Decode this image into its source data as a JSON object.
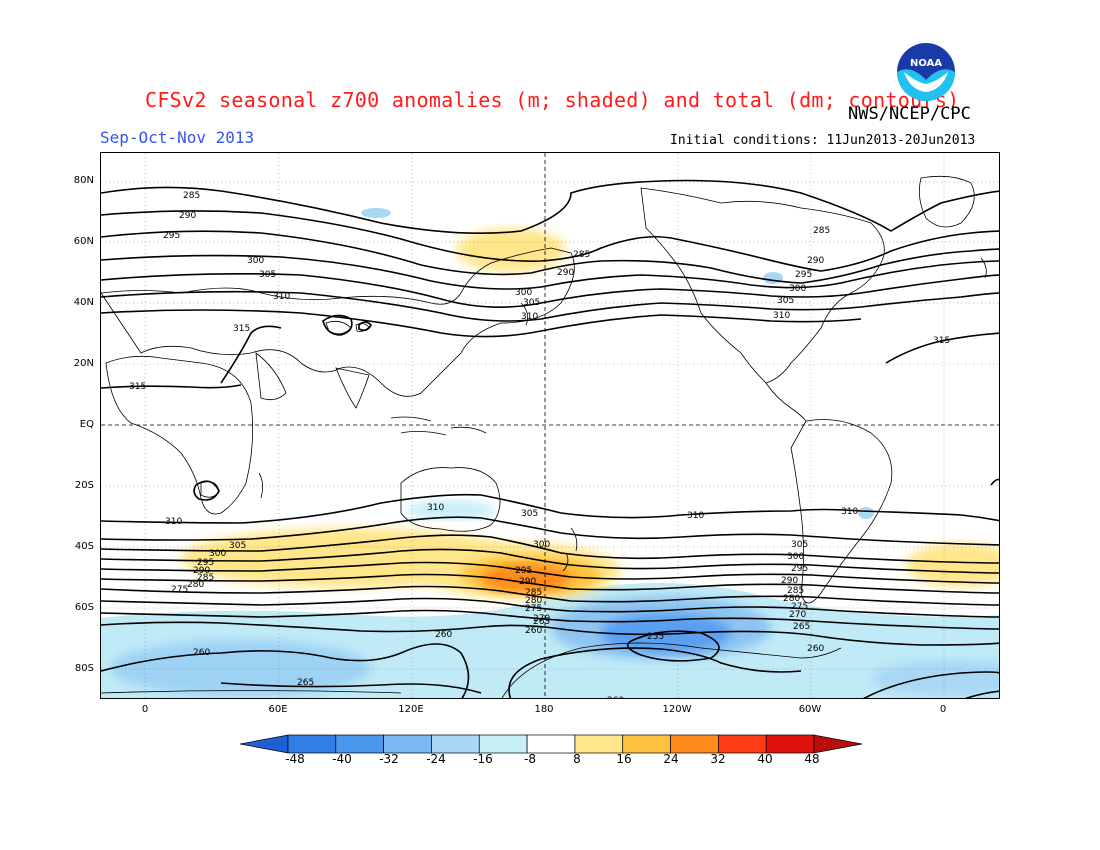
{
  "title": "CFSv2 seasonal z700 anomalies (m; shaded) and total (dm; contours)",
  "season": "Sep-Oct-Nov 2013",
  "agency": "NWS/NCEP/CPC",
  "initial_conditions": "Initial conditions: 11Jun2013-20Jun2013",
  "logo": {
    "text": "NOAA",
    "icon": "noaa-logo"
  },
  "lat_labels": [
    "80N",
    "60N",
    "40N",
    "20N",
    "EQ",
    "20S",
    "40S",
    "60S",
    "80S"
  ],
  "lon_labels": [
    "0",
    "60E",
    "120E",
    "180",
    "120W",
    "60W",
    "0"
  ],
  "colorbar": {
    "ticks": [
      "-48",
      "-40",
      "-32",
      "-24",
      "-16",
      "-8",
      "8",
      "16",
      "24",
      "32",
      "40",
      "48"
    ],
    "colors": [
      "#1f5fd6",
      "#2f7fe6",
      "#4a98ee",
      "#7ab8f4",
      "#a8d8f6",
      "#c8eef8",
      "#ffffff",
      "#ffe68a",
      "#ffc23e",
      "#ff8a1e",
      "#ff3c14",
      "#e0120e",
      "#b80d0d"
    ]
  },
  "contour_labels": {
    "north": [
      "285",
      "290",
      "295",
      "300",
      "305",
      "310",
      "315"
    ],
    "north_pacific": [
      "285",
      "290",
      "300",
      "305",
      "310"
    ],
    "north_atlantic": [
      "285",
      "290",
      "295",
      "300",
      "305",
      "310"
    ],
    "tropics": [
      "315",
      "315"
    ],
    "south_upper": [
      "310",
      "310",
      "305",
      "310",
      "310"
    ],
    "south_west": [
      "305",
      "300",
      "295",
      "290",
      "285",
      "280",
      "275"
    ],
    "south_central": [
      "300",
      "295",
      "290",
      "285",
      "280",
      "275",
      "270",
      "265",
      "260"
    ],
    "south_east": [
      "305",
      "300",
      "295",
      "290",
      "285",
      "280",
      "275",
      "270",
      "265",
      "260"
    ],
    "antarctic": [
      "260",
      "260",
      "265",
      "255",
      "260"
    ]
  }
}
